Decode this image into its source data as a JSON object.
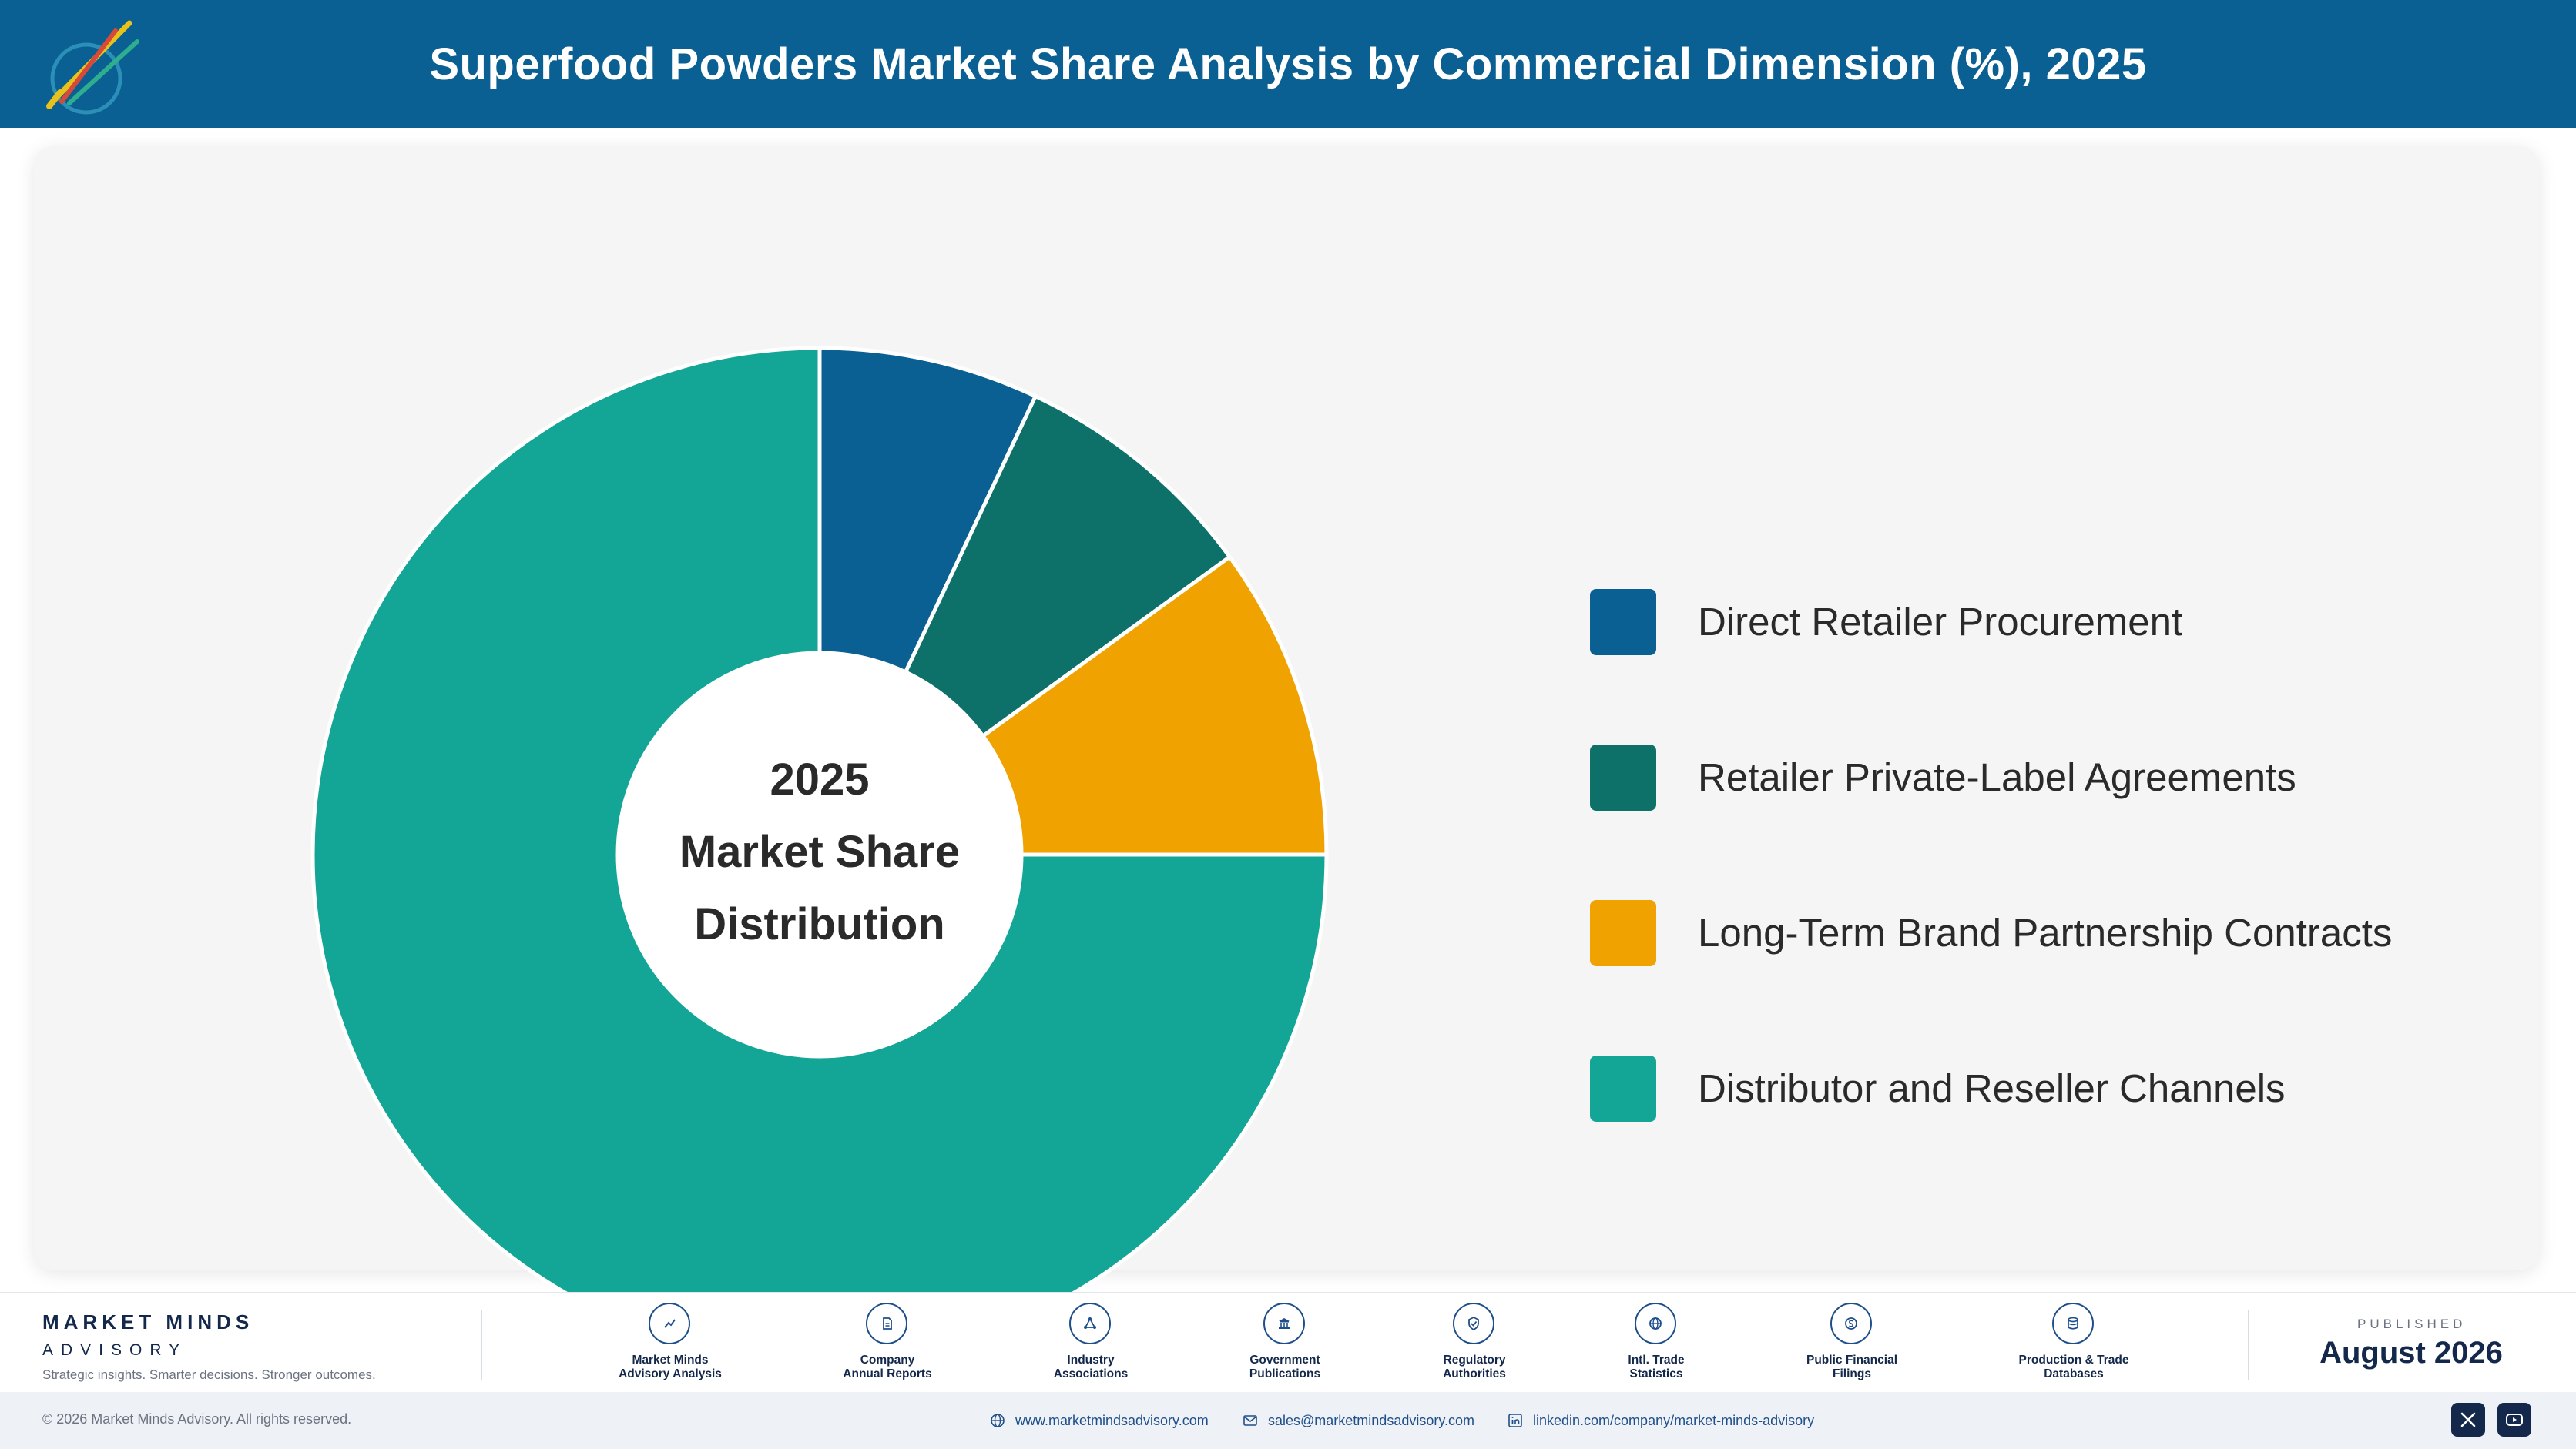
{
  "header": {
    "title": "Superfood Powders Market Share Analysis by Commercial Dimension (%), 2025"
  },
  "colors": {
    "header_bg": "#0a5f93",
    "navy": "#14284b"
  },
  "chart_data": {
    "type": "pie",
    "style": "donut",
    "center_text": [
      "2025",
      "Market Share",
      "Distribution"
    ],
    "categories": [
      "Direct Retailer Procurement",
      "Retailer Private-Label Agreements",
      "Long-Term Brand Partnership Contracts",
      "Distributor and Reseller Channels"
    ],
    "values": [
      7,
      8,
      10,
      75
    ],
    "colors": [
      "#0a5f93",
      "#0d7169",
      "#f0a300",
      "#13a595"
    ],
    "legend_position": "right",
    "data_labels": false
  },
  "footer": {
    "brand": {
      "name": "MARKET MINDS",
      "sub": "ADVISORY",
      "tagline": "Strategic insights. Smarter decisions. Stronger outcomes."
    },
    "sources": [
      {
        "line1": "Market Minds",
        "line2": "Advisory Analysis",
        "icon": "trend-chart-icon"
      },
      {
        "line1": "Company",
        "line2": "Annual Reports",
        "icon": "document-icon"
      },
      {
        "line1": "Industry",
        "line2": "Associations",
        "icon": "network-icon"
      },
      {
        "line1": "Government",
        "line2": "Publications",
        "icon": "government-building-icon"
      },
      {
        "line1": "Regulatory",
        "line2": "Authorities",
        "icon": "shield-check-icon"
      },
      {
        "line1": "Intl. Trade",
        "line2": "Statistics",
        "icon": "globe-icon"
      },
      {
        "line1": "Public Financial",
        "line2": "Filings",
        "icon": "dollar-coin-icon"
      },
      {
        "line1": "Production & Trade",
        "line2": "Databases",
        "icon": "database-icon"
      }
    ],
    "published_label": "PUBLISHED",
    "published_date": "August 2026"
  },
  "bottom_bar": {
    "copyright": "© 2026 Market Minds Advisory. All rights reserved.",
    "website": "www.marketmindsadvisory.com",
    "email": "sales@marketmindsadvisory.com",
    "linkedin": "linkedin.com/company/market-minds-advisory",
    "social": [
      "x-icon",
      "youtube-icon"
    ]
  }
}
